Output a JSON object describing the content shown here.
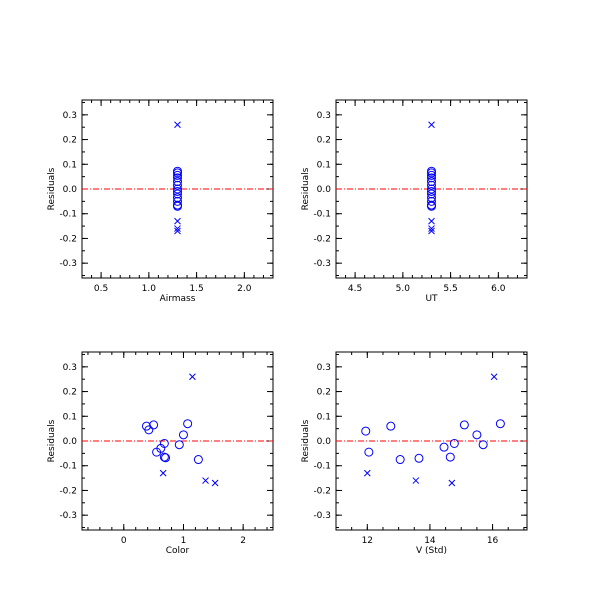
{
  "chart_data": [
    {
      "type": "scatter",
      "xlabel": "Airmass",
      "ylabel": "Residuals",
      "xlim": [
        0.3,
        2.3
      ],
      "ylim": [
        -0.36,
        0.36
      ],
      "xticks": [
        "0.5",
        "1.0",
        "1.5",
        "2.0"
      ],
      "yticks": [
        "0.3",
        "0.2",
        "0.1",
        "0.0",
        "-0.1",
        "-0.2",
        "-0.3"
      ],
      "ytick_values": [
        0.3,
        0.2,
        0.1,
        0.0,
        -0.1,
        -0.2,
        -0.3
      ],
      "xtick_values": [
        0.5,
        1.0,
        1.5,
        2.0
      ],
      "xminor_step": 0.1,
      "yminor_step": 0.05,
      "reference_line": 0.0,
      "series": [
        {
          "marker": "circle",
          "points": [
            [
              1.3,
              0.072
            ],
            [
              1.3,
              0.065
            ],
            [
              1.3,
              0.055
            ],
            [
              1.3,
              0.045
            ],
            [
              1.3,
              0.03
            ],
            [
              1.3,
              0.015
            ],
            [
              1.3,
              0.0
            ],
            [
              1.3,
              -0.01
            ],
            [
              1.3,
              -0.02
            ],
            [
              1.3,
              -0.035
            ],
            [
              1.3,
              -0.05
            ],
            [
              1.3,
              -0.065
            ],
            [
              1.3,
              -0.07
            ]
          ]
        },
        {
          "marker": "x",
          "points": [
            [
              1.3,
              0.26
            ],
            [
              1.3,
              -0.13
            ],
            [
              1.3,
              -0.16
            ],
            [
              1.3,
              -0.17
            ]
          ]
        }
      ]
    },
    {
      "type": "scatter",
      "xlabel": "UT",
      "ylabel": "Residuals",
      "xlim": [
        4.3,
        6.3
      ],
      "ylim": [
        -0.36,
        0.36
      ],
      "xticks": [
        "4.5",
        "5.0",
        "5.5",
        "6.0"
      ],
      "yticks": [
        "0.3",
        "0.2",
        "0.1",
        "0.0",
        "-0.1",
        "-0.2",
        "-0.3"
      ],
      "ytick_values": [
        0.3,
        0.2,
        0.1,
        0.0,
        -0.1,
        -0.2,
        -0.3
      ],
      "xtick_values": [
        4.5,
        5.0,
        5.5,
        6.0
      ],
      "xminor_step": 0.1,
      "yminor_step": 0.05,
      "reference_line": 0.0,
      "series": [
        {
          "marker": "circle",
          "points": [
            [
              5.3,
              0.072
            ],
            [
              5.3,
              0.065
            ],
            [
              5.3,
              0.055
            ],
            [
              5.3,
              0.045
            ],
            [
              5.3,
              0.03
            ],
            [
              5.3,
              0.015
            ],
            [
              5.3,
              0.0
            ],
            [
              5.3,
              -0.01
            ],
            [
              5.3,
              -0.02
            ],
            [
              5.3,
              -0.035
            ],
            [
              5.3,
              -0.05
            ],
            [
              5.3,
              -0.065
            ],
            [
              5.3,
              -0.07
            ]
          ]
        },
        {
          "marker": "x",
          "points": [
            [
              5.3,
              0.26
            ],
            [
              5.3,
              -0.13
            ],
            [
              5.3,
              -0.16
            ],
            [
              5.3,
              -0.17
            ]
          ]
        }
      ]
    },
    {
      "type": "scatter",
      "xlabel": "Color",
      "ylabel": "Residuals",
      "xlim": [
        -0.7,
        2.5
      ],
      "ylim": [
        -0.36,
        0.36
      ],
      "xticks": [
        "0",
        "1",
        "2"
      ],
      "yticks": [
        "0.3",
        "0.2",
        "0.1",
        "0.0",
        "-0.1",
        "-0.2",
        "-0.3"
      ],
      "ytick_values": [
        0.3,
        0.2,
        0.1,
        0.0,
        -0.1,
        -0.2,
        -0.3
      ],
      "xtick_values": [
        0,
        1,
        2
      ],
      "xminor_step": 0.2,
      "yminor_step": 0.05,
      "reference_line": 0.0,
      "series": [
        {
          "marker": "circle",
          "points": [
            [
              0.38,
              0.06
            ],
            [
              0.42,
              0.045
            ],
            [
              0.5,
              0.065
            ],
            [
              0.55,
              -0.045
            ],
            [
              0.62,
              -0.03
            ],
            [
              0.68,
              -0.01
            ],
            [
              0.68,
              -0.065
            ],
            [
              0.7,
              -0.068
            ],
            [
              0.93,
              -0.015
            ],
            [
              1.0,
              0.025
            ],
            [
              1.07,
              0.07
            ],
            [
              1.25,
              -0.075
            ]
          ]
        },
        {
          "marker": "x",
          "points": [
            [
              1.15,
              0.26
            ],
            [
              0.66,
              -0.13
            ],
            [
              1.37,
              -0.16
            ],
            [
              1.53,
              -0.17
            ]
          ]
        }
      ]
    },
    {
      "type": "scatter",
      "xlabel": "V (Std)",
      "ylabel": "Residuals",
      "xlim": [
        11.0,
        17.1
      ],
      "ylim": [
        -0.36,
        0.36
      ],
      "xticks": [
        "12",
        "14",
        "16"
      ],
      "yticks": [
        "0.3",
        "0.2",
        "0.1",
        "0.0",
        "-0.1",
        "-0.2",
        "-0.3"
      ],
      "ytick_values": [
        0.3,
        0.2,
        0.1,
        0.0,
        -0.1,
        -0.2,
        -0.3
      ],
      "xtick_values": [
        12,
        14,
        16
      ],
      "xminor_step": 0.5,
      "yminor_step": 0.05,
      "reference_line": 0.0,
      "series": [
        {
          "marker": "circle",
          "points": [
            [
              11.95,
              0.04
            ],
            [
              12.05,
              -0.045
            ],
            [
              12.75,
              0.06
            ],
            [
              13.05,
              -0.075
            ],
            [
              13.65,
              -0.07
            ],
            [
              14.45,
              -0.025
            ],
            [
              14.65,
              -0.065
            ],
            [
              14.78,
              -0.01
            ],
            [
              15.1,
              0.065
            ],
            [
              15.5,
              0.025
            ],
            [
              15.7,
              -0.015
            ],
            [
              16.25,
              0.07
            ]
          ]
        },
        {
          "marker": "x",
          "points": [
            [
              12.0,
              -0.13
            ],
            [
              13.55,
              -0.16
            ],
            [
              14.7,
              -0.17
            ],
            [
              16.05,
              0.26
            ]
          ]
        }
      ]
    }
  ],
  "style": {
    "marker_color": "#0000ff",
    "reference_line_color": "#ff0000",
    "axis_color": "#000000"
  }
}
